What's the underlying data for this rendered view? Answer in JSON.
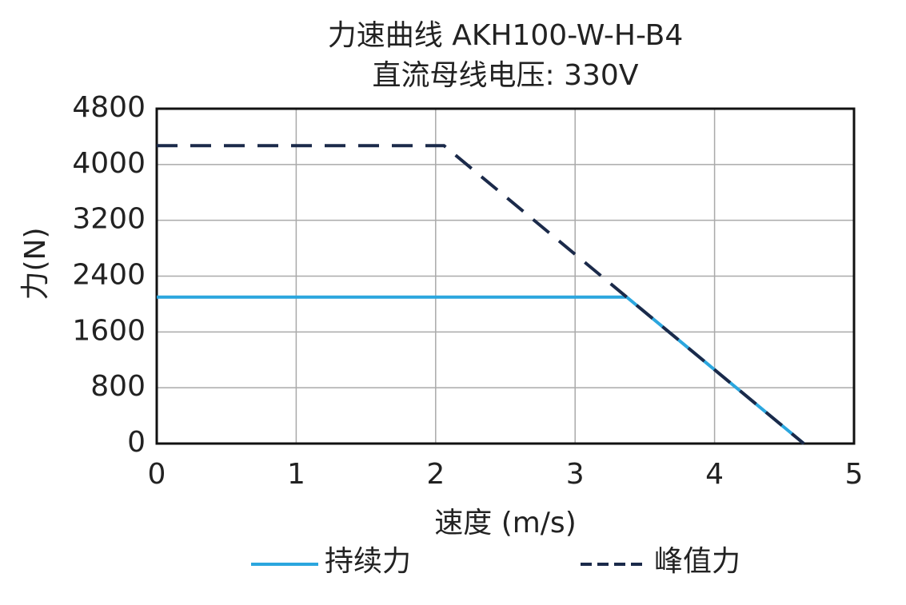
{
  "chart_data": {
    "type": "line",
    "title": "力速曲线 AKH100-W-H-B4",
    "subtitle": "直流母线电压: 330V",
    "x_label": "速度 (m/s)",
    "y_label": "力(N)",
    "xlim": [
      0,
      5
    ],
    "xticks": [
      0,
      1,
      2,
      3,
      4,
      5
    ],
    "ylim": [
      0,
      4800
    ],
    "yticks": [
      0,
      800,
      1600,
      2400,
      3200,
      4000,
      4800
    ],
    "grid": true,
    "legend": "bottom",
    "series": [
      {
        "name": "持续力",
        "color": "#2ba6de",
        "dash": false,
        "x": [
          0,
          3.37,
          4.64
        ],
        "values": [
          2100,
          2100,
          0
        ]
      },
      {
        "name": "峰值力",
        "color": "#1b2a4a",
        "dash": true,
        "x": [
          0,
          2.06,
          3.37,
          4.64
        ],
        "values": [
          4270,
          4270,
          2100,
          0
        ]
      }
    ]
  }
}
